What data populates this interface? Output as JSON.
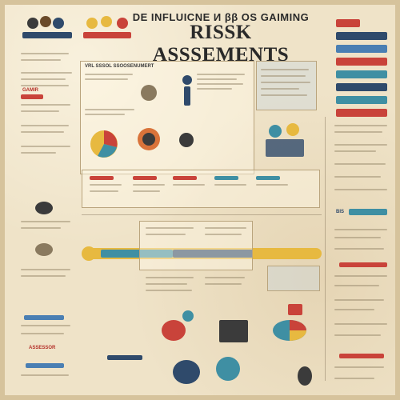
{
  "header": {
    "line1": "DE INFLUICNE И ββ OS GAIMING",
    "line2": "RISSK ASSSEMENTS"
  },
  "labels": {
    "panel_top": "VRL SSSOL SSOOSENUMERT",
    "left_gamin": "GAMIR",
    "assessori": "ASSESSOR",
    "bis": "BIS"
  },
  "colors": {
    "red": "#c9433a",
    "teal": "#3f8fa3",
    "yellow": "#e7b940",
    "navy": "#2f4a6b",
    "orange": "#d9733a",
    "blue": "#4a7fb3",
    "cream": "#efe3c8"
  }
}
